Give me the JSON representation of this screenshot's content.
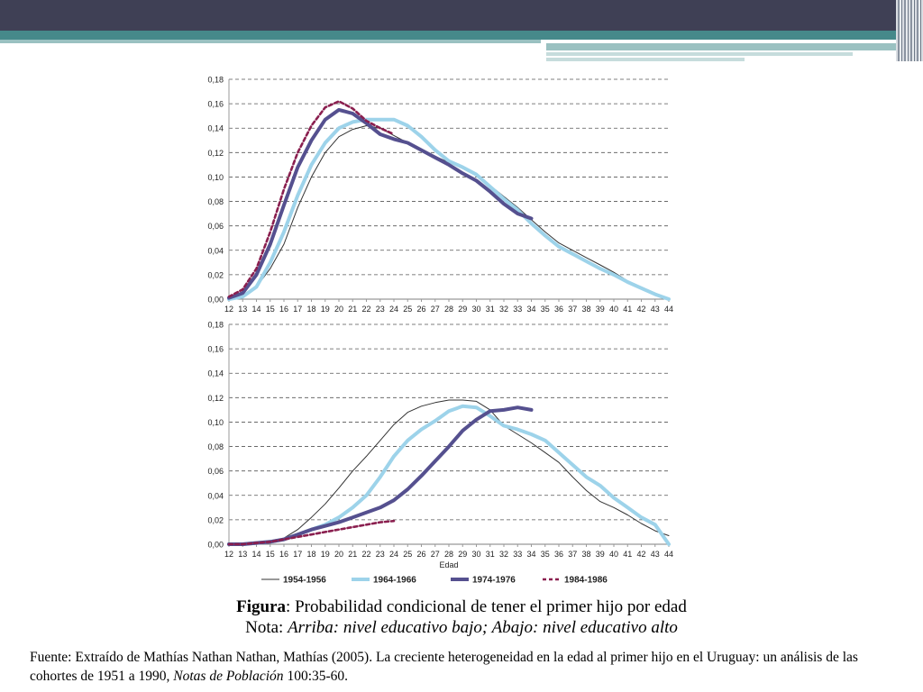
{
  "caption": {
    "figure_label": "Figura",
    "figure_text": ": Probabilidad condicional de tener el primer hijo por edad",
    "note_label": "Nota: ",
    "note_text": "Arriba: nivel educativo bajo; Abajo: nivel educativo alto"
  },
  "source": {
    "prefix": "Fuente: Extraído de Mathías Nathan Nathan, Mathías (2005). La creciente heterogeneidad en la edad al primer hijo en el Uruguay: un análisis de las cohortes de 1951 a 1990, ",
    "journal": "Notas de Población",
    "suffix": " 100:35-60."
  },
  "colors": {
    "s1954": "#333333",
    "s1964": "#9dd3ea",
    "s1974": "#55508f",
    "s1984": "#8a1f4f",
    "grid": "#555555",
    "axis": "#999999"
  },
  "chart_data": [
    {
      "type": "line",
      "panel": "top",
      "xlabel": "",
      "ylim": [
        0,
        0.18
      ],
      "xlim": [
        12,
        44
      ],
      "y_ticks": [
        "0,00",
        "0,02",
        "0,04",
        "0,06",
        "0,08",
        "0,10",
        "0,12",
        "0,14",
        "0,16",
        "0,18"
      ],
      "x_ticks": [
        "12",
        "13",
        "14",
        "15",
        "16",
        "17",
        "18",
        "19",
        "20",
        "21",
        "22",
        "23",
        "24",
        "25",
        "26",
        "27",
        "28",
        "29",
        "30",
        "31",
        "32",
        "33",
        "34",
        "35",
        "36",
        "37",
        "38",
        "39",
        "40",
        "41",
        "42",
        "43",
        "44"
      ],
      "grid": "horizontal-dashed",
      "series": [
        {
          "name": "1954-1956",
          "x": [
            12,
            13,
            14,
            15,
            16,
            17,
            18,
            19,
            20,
            21,
            22,
            23,
            24,
            25,
            26,
            27,
            28,
            29,
            30,
            31,
            32,
            33,
            34,
            35,
            36,
            37,
            38,
            39,
            40,
            41,
            42,
            43,
            44
          ],
          "y": [
            0.0,
            0.003,
            0.01,
            0.025,
            0.045,
            0.075,
            0.1,
            0.12,
            0.133,
            0.139,
            0.142,
            0.14,
            0.134,
            0.128,
            0.122,
            0.117,
            0.112,
            0.107,
            0.101,
            0.093,
            0.084,
            0.075,
            0.065,
            0.055,
            0.046,
            0.04,
            0.034,
            0.028,
            0.022,
            0.015,
            0.01,
            0.005,
            0.0
          ]
        },
        {
          "name": "1964-1966",
          "x": [
            12,
            13,
            14,
            15,
            16,
            17,
            18,
            19,
            20,
            21,
            22,
            23,
            24,
            25,
            26,
            27,
            28,
            29,
            30,
            31,
            32,
            33,
            34,
            35,
            36,
            37,
            38,
            39,
            40,
            41,
            42,
            43,
            44
          ],
          "y": [
            0.0,
            0.002,
            0.01,
            0.03,
            0.055,
            0.085,
            0.11,
            0.128,
            0.14,
            0.145,
            0.147,
            0.147,
            0.147,
            0.142,
            0.133,
            0.122,
            0.113,
            0.108,
            0.102,
            0.092,
            0.082,
            0.073,
            0.062,
            0.052,
            0.043,
            0.037,
            0.031,
            0.025,
            0.02,
            0.014,
            0.009,
            0.004,
            0.0
          ]
        },
        {
          "name": "1974-1976",
          "x": [
            12,
            13,
            14,
            15,
            16,
            17,
            18,
            19,
            20,
            21,
            22,
            23,
            24,
            25,
            26,
            27,
            28,
            29,
            30,
            31,
            32,
            33,
            34
          ],
          "y": [
            0.001,
            0.005,
            0.02,
            0.045,
            0.077,
            0.108,
            0.13,
            0.147,
            0.155,
            0.152,
            0.144,
            0.135,
            0.131,
            0.128,
            0.122,
            0.116,
            0.11,
            0.103,
            0.097,
            0.088,
            0.078,
            0.07,
            0.066
          ]
        },
        {
          "name": "1984-1986",
          "x": [
            12,
            13,
            14,
            15,
            16,
            17,
            18,
            19,
            20,
            21,
            22,
            23,
            24
          ],
          "y": [
            0.002,
            0.008,
            0.025,
            0.055,
            0.09,
            0.12,
            0.142,
            0.157,
            0.162,
            0.156,
            0.146,
            0.14,
            0.135
          ]
        }
      ]
    },
    {
      "type": "line",
      "panel": "bottom",
      "xlabel": "Edad",
      "ylim": [
        0,
        0.18
      ],
      "xlim": [
        12,
        44
      ],
      "y_ticks": [
        "0,00",
        "0,02",
        "0,04",
        "0,06",
        "0,08",
        "0,10",
        "0,12",
        "0,14",
        "0,16",
        "0,18"
      ],
      "x_ticks": [
        "12",
        "13",
        "14",
        "15",
        "16",
        "17",
        "18",
        "19",
        "20",
        "21",
        "22",
        "23",
        "24",
        "25",
        "26",
        "27",
        "28",
        "29",
        "30",
        "31",
        "32",
        "33",
        "34",
        "35",
        "36",
        "37",
        "38",
        "39",
        "40",
        "41",
        "42",
        "43",
        "44"
      ],
      "grid": "horizontal-dashed",
      "legend_position": "bottom",
      "series": [
        {
          "name": "1954-1956",
          "x": [
            12,
            13,
            14,
            15,
            16,
            17,
            18,
            19,
            20,
            21,
            22,
            23,
            24,
            25,
            26,
            27,
            28,
            29,
            30,
            31,
            32,
            33,
            34,
            35,
            36,
            37,
            38,
            39,
            40,
            41,
            42,
            43,
            44
          ],
          "y": [
            0.0,
            0.0,
            0.001,
            0.002,
            0.005,
            0.012,
            0.022,
            0.033,
            0.046,
            0.06,
            0.072,
            0.085,
            0.098,
            0.108,
            0.113,
            0.116,
            0.118,
            0.118,
            0.117,
            0.11,
            0.097,
            0.09,
            0.083,
            0.075,
            0.067,
            0.055,
            0.044,
            0.035,
            0.03,
            0.024,
            0.017,
            0.011,
            0.007
          ]
        },
        {
          "name": "1964-1966",
          "x": [
            12,
            13,
            14,
            15,
            16,
            17,
            18,
            19,
            20,
            21,
            22,
            23,
            24,
            25,
            26,
            27,
            28,
            29,
            30,
            31,
            32,
            33,
            34,
            35,
            36,
            37,
            38,
            39,
            40,
            41,
            42,
            43,
            44
          ],
          "y": [
            0.0,
            0.0,
            0.001,
            0.002,
            0.004,
            0.008,
            0.012,
            0.016,
            0.022,
            0.03,
            0.04,
            0.055,
            0.072,
            0.085,
            0.094,
            0.101,
            0.109,
            0.113,
            0.112,
            0.105,
            0.097,
            0.094,
            0.09,
            0.085,
            0.075,
            0.065,
            0.055,
            0.048,
            0.038,
            0.03,
            0.022,
            0.016,
            0.0
          ]
        },
        {
          "name": "1974-1976",
          "x": [
            12,
            13,
            14,
            15,
            16,
            17,
            18,
            19,
            20,
            21,
            22,
            23,
            24,
            25,
            26,
            27,
            28,
            29,
            30,
            31,
            32,
            33,
            34
          ],
          "y": [
            0.0,
            0.0,
            0.001,
            0.002,
            0.004,
            0.008,
            0.012,
            0.015,
            0.018,
            0.022,
            0.026,
            0.03,
            0.036,
            0.045,
            0.056,
            0.068,
            0.08,
            0.093,
            0.102,
            0.109,
            0.11,
            0.112,
            0.11
          ]
        },
        {
          "name": "1984-1986",
          "x": [
            12,
            13,
            14,
            15,
            16,
            17,
            18,
            19,
            20,
            21,
            22,
            23,
            24
          ],
          "y": [
            0.0,
            0.0,
            0.001,
            0.002,
            0.004,
            0.006,
            0.008,
            0.01,
            0.012,
            0.014,
            0.016,
            0.018,
            0.019
          ]
        }
      ]
    }
  ]
}
